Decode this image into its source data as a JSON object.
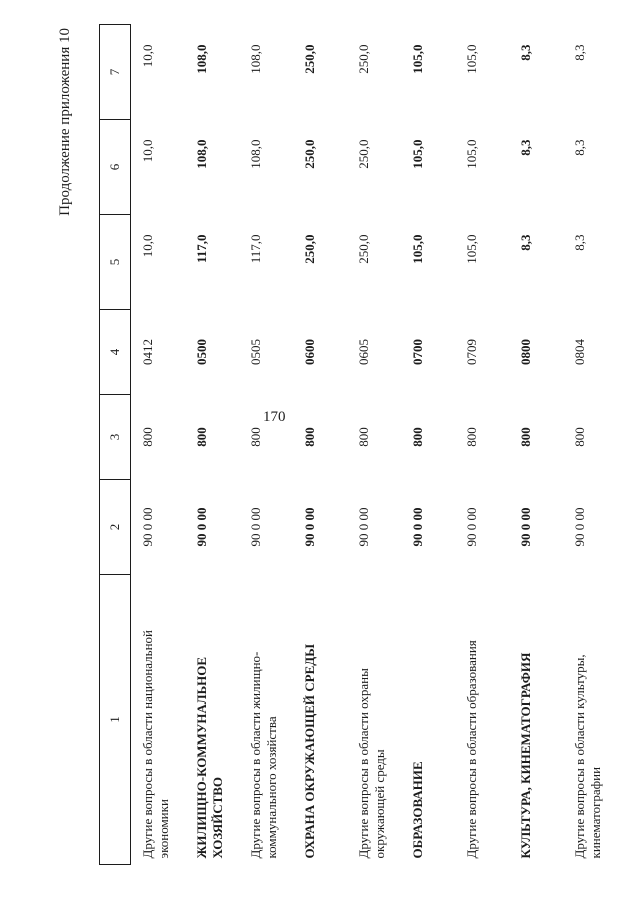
{
  "page": {
    "number": "170",
    "title": "Продолжение приложения 10",
    "background_color": "#ffffff",
    "ink_color": "#1c1c1c"
  },
  "table": {
    "column_headers": [
      "1",
      "2",
      "3",
      "4",
      "5",
      "6",
      "7"
    ],
    "rows": [
      {
        "name": "Другие вопросы в области национальной экономики",
        "bold": false,
        "col2": "90 0 00",
        "col3": "800",
        "col4": "0412",
        "col5": "10,0",
        "col6": "10,0",
        "col7": "10,0"
      },
      {
        "name": "ЖИЛИЩНО-КОММУНАЛЬНОЕ ХОЗЯЙСТВО",
        "bold": true,
        "col2": "90 0 00",
        "col3": "800",
        "col4": "0500",
        "col5": "117,0",
        "col6": "108,0",
        "col7": "108,0"
      },
      {
        "name": "Другие вопросы в области жилищно-коммунального хозяйства",
        "bold": false,
        "col2": "90 0 00",
        "col3": "800",
        "col4": "0505",
        "col5": "117,0",
        "col6": "108,0",
        "col7": "108,0"
      },
      {
        "name": "ОХРАНА ОКРУЖАЮЩЕЙ СРЕДЫ",
        "bold": true,
        "col2": "90 0 00",
        "col3": "800",
        "col4": "0600",
        "col5": "250,0",
        "col6": "250,0",
        "col7": "250,0"
      },
      {
        "name": "Другие вопросы в области охраны окружающей среды",
        "bold": false,
        "col2": "90 0 00",
        "col3": "800",
        "col4": "0605",
        "col5": "250,0",
        "col6": "250,0",
        "col7": "250,0"
      },
      {
        "name": "ОБРАЗОВАНИЕ",
        "bold": true,
        "col2": "90 0 00",
        "col3": "800",
        "col4": "0700",
        "col5": "105,0",
        "col6": "105,0",
        "col7": "105,0"
      },
      {
        "name": "Другие вопросы в области образования",
        "bold": false,
        "col2": "90 0 00",
        "col3": "800",
        "col4": "0709",
        "col5": "105,0",
        "col6": "105,0",
        "col7": "105,0"
      },
      {
        "name": "КУЛЬТУРА, КИНЕМАТОГРАФИЯ",
        "bold": true,
        "col2": "90 0 00",
        "col3": "800",
        "col4": "0800",
        "col5": "8,3",
        "col6": "8,3",
        "col7": "8,3"
      },
      {
        "name": "Другие вопросы в области культуры, кинематографии",
        "bold": false,
        "col2": "90 0 00",
        "col3": "800",
        "col4": "0804",
        "col5": "8,3",
        "col6": "8,3",
        "col7": "8,3"
      }
    ]
  }
}
